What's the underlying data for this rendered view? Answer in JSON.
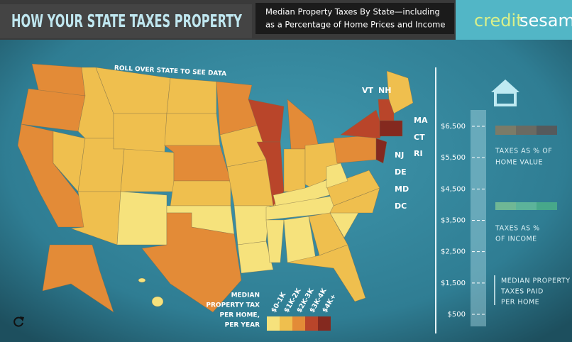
{
  "header": {
    "title": "HOW YOUR STATE TAXES PROPERTY",
    "subtitle": [
      "Median Property Taxes By State—including",
      "as a Percentage of Home Prices and Income"
    ],
    "brand": [
      "credit",
      "sesame"
    ]
  },
  "map": {
    "instruction": "ROLL OVER STATE TO SEE DATA",
    "state_labels": [
      "VT",
      "NH",
      "MA",
      "CT",
      "RI",
      "NJ",
      "DE",
      "MD",
      "DC"
    ]
  },
  "legend": {
    "title_lines": [
      "MEDIAN",
      "PROPERTY TAX",
      "PER HOME,",
      "PER YEAR"
    ],
    "bins": [
      {
        "label": "$0-1K",
        "color": "#f6e27c"
      },
      {
        "label": "$1K-2K",
        "color": "#efbf4e"
      },
      {
        "label": "$2K-3K",
        "color": "#e38b37"
      },
      {
        "label": "$3K-4K",
        "color": "#b9452a"
      },
      {
        "label": "$4K+",
        "color": "#84291f"
      }
    ]
  },
  "scale": {
    "range": [
      500,
      6500
    ],
    "ticks": [
      {
        "value": 6500,
        "label": "$6,500"
      },
      {
        "value": 5500,
        "label": "$5,500"
      },
      {
        "value": 4500,
        "label": "$4,500"
      },
      {
        "value": 3500,
        "label": "$3,500"
      },
      {
        "value": 2500,
        "label": "$2,500"
      },
      {
        "value": 1500,
        "label": "$1,500"
      },
      {
        "value": 500,
        "label": "$500"
      }
    ]
  },
  "panel": {
    "home_value": [
      "TAXES AS % OF",
      "HOME VALUE"
    ],
    "income": [
      "TAXES AS %",
      "OF INCOME"
    ],
    "median": [
      "MEDIAN PROPERTY",
      "TAXES PAID",
      "PER HOME"
    ]
  }
}
